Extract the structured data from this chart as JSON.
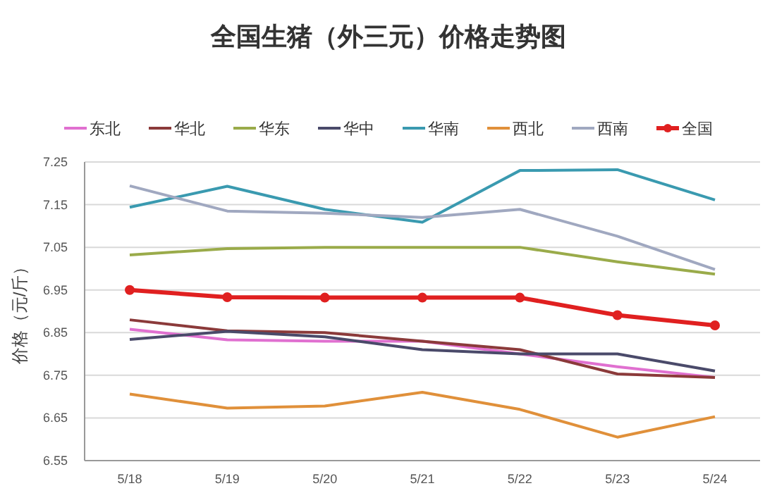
{
  "chart_data": {
    "type": "line",
    "title": "全国生猪（外三元）价格走势图",
    "ylabel": "价格（元/斤）",
    "categories": [
      "5/18",
      "5/19",
      "5/20",
      "5/21",
      "5/22",
      "5/23",
      "5/24"
    ],
    "ylim": [
      6.55,
      7.25
    ],
    "yticks": [
      6.55,
      6.65,
      6.75,
      6.85,
      6.95,
      7.05,
      7.15,
      7.25
    ],
    "grid": "y",
    "legend": "top",
    "series": [
      {
        "name": "东北",
        "color": "#e070d0",
        "marker": "none",
        "values": [
          6.858,
          6.833,
          6.83,
          6.83,
          6.8,
          6.77,
          6.745
        ]
      },
      {
        "name": "华北",
        "color": "#8b3a3a",
        "marker": "none",
        "values": [
          6.88,
          6.854,
          6.85,
          6.83,
          6.81,
          6.753,
          6.745
        ]
      },
      {
        "name": "华东",
        "color": "#9aab4a",
        "marker": "none",
        "values": [
          7.032,
          7.047,
          7.05,
          7.05,
          7.05,
          7.016,
          6.987
        ]
      },
      {
        "name": "华中",
        "color": "#4a4a6a",
        "marker": "none",
        "values": [
          6.834,
          6.853,
          6.84,
          6.81,
          6.8,
          6.8,
          6.76
        ]
      },
      {
        "name": "华南",
        "color": "#3a9ab0",
        "marker": "none",
        "values": [
          7.144,
          7.193,
          7.139,
          7.109,
          7.23,
          7.232,
          7.161
        ]
      },
      {
        "name": "西北",
        "color": "#e0903a",
        "marker": "none",
        "values": [
          6.706,
          6.673,
          6.678,
          6.71,
          6.67,
          6.605,
          6.653
        ]
      },
      {
        "name": "西南",
        "color": "#a0a8c0",
        "marker": "none",
        "values": [
          7.194,
          7.135,
          7.13,
          7.12,
          7.139,
          7.076,
          6.998
        ]
      },
      {
        "name": "全国",
        "color": "#e02020",
        "marker": "circle",
        "values": [
          6.95,
          6.933,
          6.932,
          6.932,
          6.932,
          6.891,
          6.867
        ]
      }
    ]
  }
}
